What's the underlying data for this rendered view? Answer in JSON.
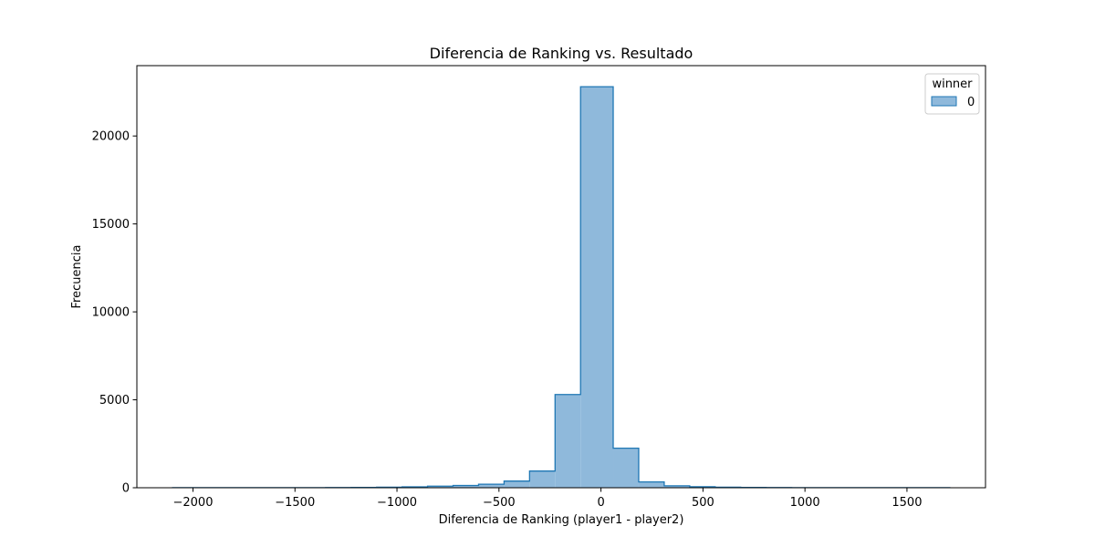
{
  "chart_data": {
    "type": "histogram",
    "title": "Diferencia de Ranking vs. Resultado",
    "xlabel": "Diferencia de Ranking (player1 - player2)",
    "ylabel": "Frecuencia",
    "xlim": [
      -2275,
      1885
    ],
    "ylim": [
      0,
      24000
    ],
    "xticks": [
      -2000,
      -1500,
      -1000,
      -500,
      0,
      500,
      1000,
      1500
    ],
    "xtick_labels": [
      "−2000",
      "−1500",
      "−1000",
      "−500",
      "0",
      "500",
      "1000",
      "1500"
    ],
    "yticks": [
      0,
      5000,
      10000,
      15000,
      20000
    ],
    "ytick_labels": [
      "0",
      "5000",
      "10000",
      "15000",
      "20000"
    ],
    "grid": false,
    "legend": {
      "title": "winner",
      "placement": "top-right",
      "entries": [
        "0"
      ]
    },
    "series": [
      {
        "name": "0",
        "color": "#1f77b4",
        "fill": "#8fb9db",
        "bins": [
          {
            "x0": -2100,
            "x1": -1975,
            "count": 5
          },
          {
            "x0": -1975,
            "x1": -1850,
            "count": 5
          },
          {
            "x0": -1850,
            "x1": -1725,
            "count": 5
          },
          {
            "x0": -1725,
            "x1": -1600,
            "count": 5
          },
          {
            "x0": -1600,
            "x1": -1475,
            "count": 5
          },
          {
            "x0": -1475,
            "x1": -1350,
            "count": 5
          },
          {
            "x0": -1350,
            "x1": -1225,
            "count": 10
          },
          {
            "x0": -1225,
            "x1": -1100,
            "count": 15
          },
          {
            "x0": -1100,
            "x1": -975,
            "count": 30
          },
          {
            "x0": -975,
            "x1": -850,
            "count": 50
          },
          {
            "x0": -850,
            "x1": -725,
            "count": 90
          },
          {
            "x0": -725,
            "x1": -600,
            "count": 130
          },
          {
            "x0": -600,
            "x1": -475,
            "count": 200
          },
          {
            "x0": -475,
            "x1": -350,
            "count": 380
          },
          {
            "x0": -350,
            "x1": -225,
            "count": 950
          },
          {
            "x0": -225,
            "x1": -100,
            "count": 5300
          },
          {
            "x0": -100,
            "x1": 60,
            "count": 22800
          },
          {
            "x0": 60,
            "x1": 185,
            "count": 2250
          },
          {
            "x0": 185,
            "x1": 310,
            "count": 330
          },
          {
            "x0": 310,
            "x1": 435,
            "count": 110
          },
          {
            "x0": 435,
            "x1": 560,
            "count": 60
          },
          {
            "x0": 560,
            "x1": 685,
            "count": 30
          },
          {
            "x0": 685,
            "x1": 810,
            "count": 15
          },
          {
            "x0": 810,
            "x1": 935,
            "count": 10
          },
          {
            "x0": 935,
            "x1": 1060,
            "count": 5
          },
          {
            "x0": 1060,
            "x1": 1185,
            "count": 5
          },
          {
            "x0": 1185,
            "x1": 1310,
            "count": 5
          },
          {
            "x0": 1310,
            "x1": 1435,
            "count": 5
          },
          {
            "x0": 1435,
            "x1": 1560,
            "count": 5
          },
          {
            "x0": 1560,
            "x1": 1710,
            "count": 5
          }
        ]
      }
    ]
  }
}
